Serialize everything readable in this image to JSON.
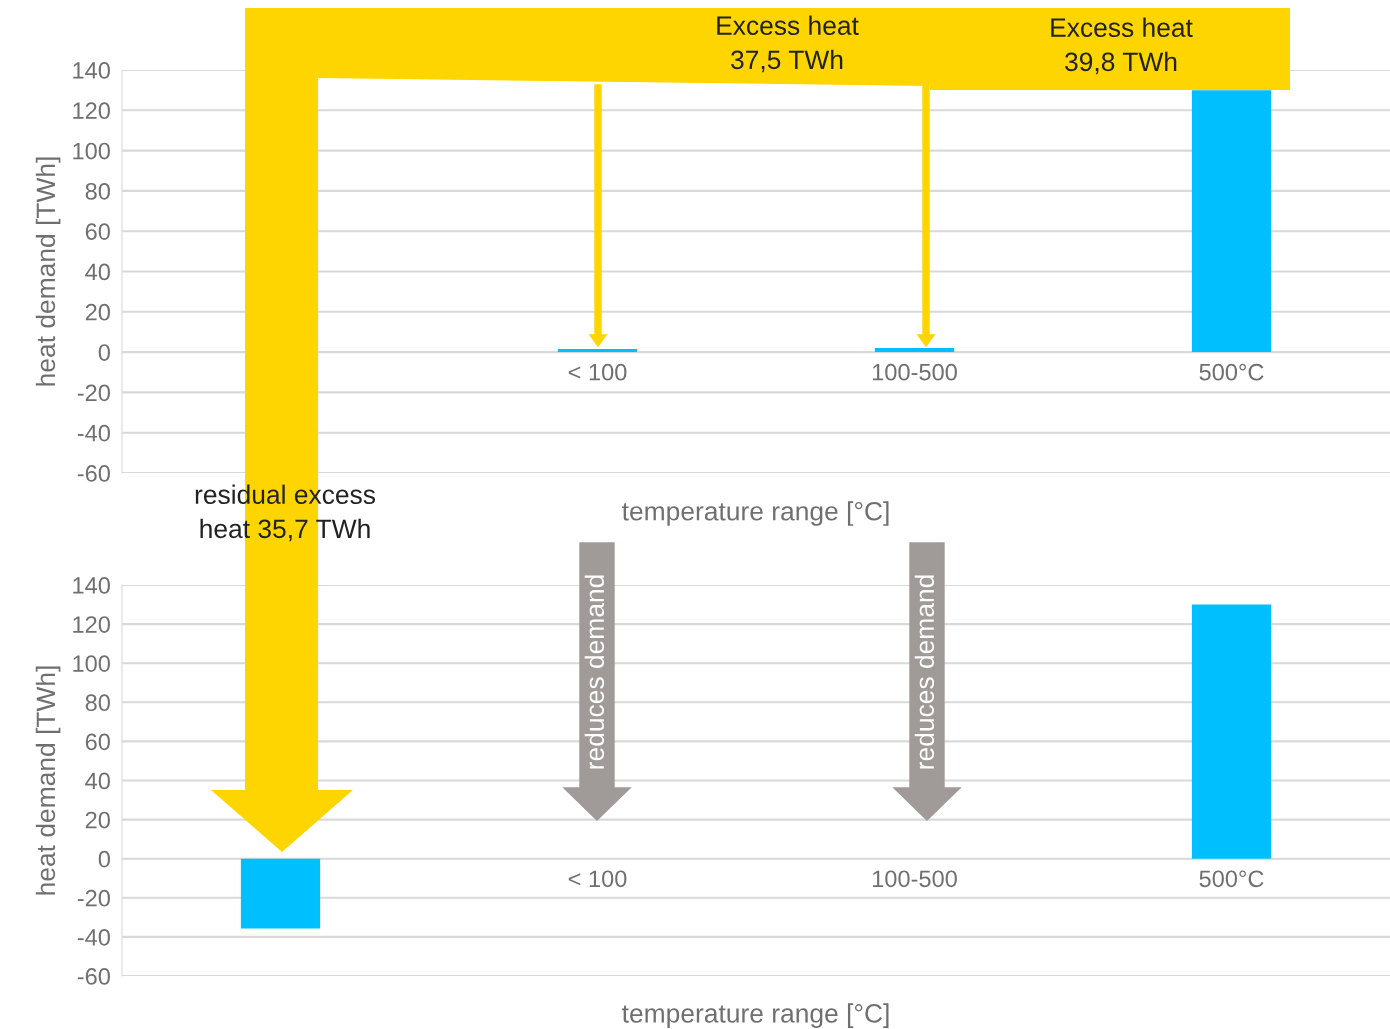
{
  "chart_data": [
    {
      "type": "bar",
      "categories": [
        null,
        "< 100",
        "100-500",
        "500°C"
      ],
      "values": [
        null,
        1.5,
        2,
        130
      ],
      "color": "#00bfff",
      "xlabel": "temperature range [°C]",
      "ylabel": "heat demand [TWh]",
      "ylim": [
        -60,
        140
      ],
      "yticks": [
        -60,
        -40,
        -20,
        0,
        20,
        40,
        60,
        80,
        100,
        120,
        140
      ],
      "grid": "y",
      "annotations": [
        "Excess heat\n37,5 TWh",
        "Excess heat\n39,8 TWh",
        "residual excess\nheat 35,7 TWh"
      ]
    },
    {
      "type": "bar",
      "categories": [
        null,
        "< 100",
        "100-500",
        "500°C"
      ],
      "values": [
        -35.7,
        0,
        0,
        130
      ],
      "color": "#00bfff",
      "xlabel": "temperature range [°C]",
      "ylabel": "heat demand [TWh]",
      "ylim": [
        -60,
        140
      ],
      "yticks": [
        -60,
        -40,
        -20,
        0,
        20,
        40,
        60,
        80,
        100,
        120,
        140
      ],
      "grid": "y",
      "annotations": [
        "reduces demand",
        "reduces demand"
      ]
    }
  ]
}
